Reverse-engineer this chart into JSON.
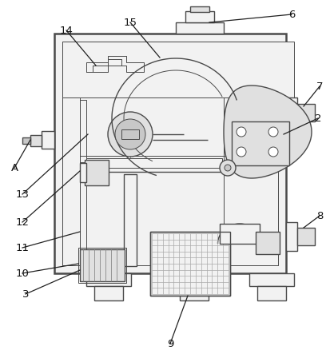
{
  "bg_color": "#ffffff",
  "lc": "#4a4a4a",
  "lw_outer": 1.8,
  "lw_inner": 1.0,
  "lw_thin": 0.7,
  "fig_width": 4.13,
  "fig_height": 4.43,
  "dpi": 100,
  "fill_light": "#f2f2f2",
  "fill_mid": "#e0e0e0",
  "fill_dark": "#c8c8c8",
  "fill_white": "#ffffff"
}
